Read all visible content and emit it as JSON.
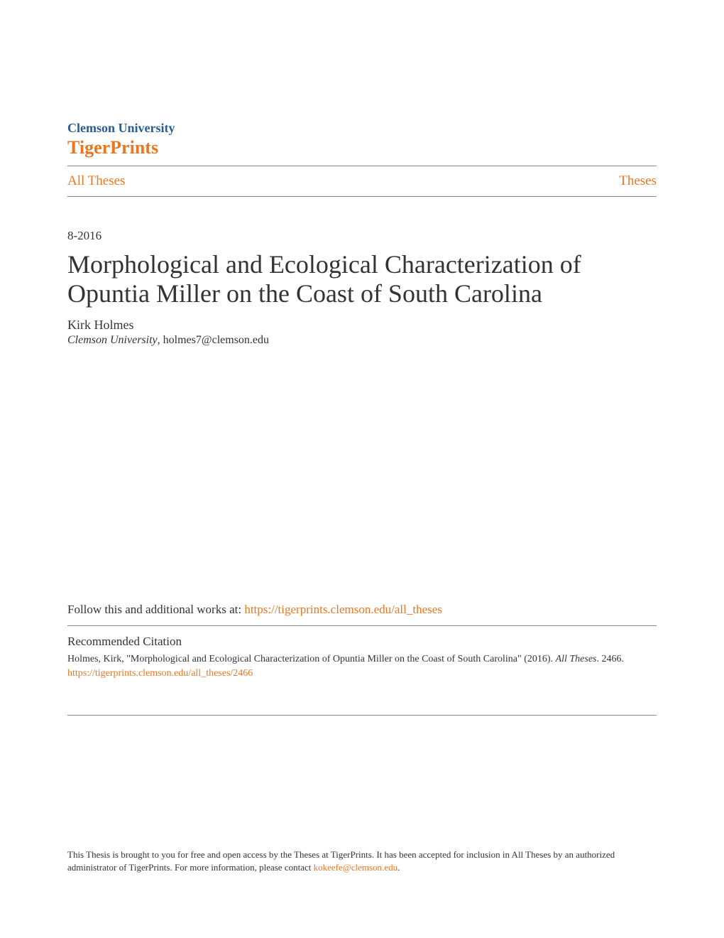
{
  "header": {
    "institution": "Clemson University",
    "repository": "TigerPrints"
  },
  "breadcrumb": {
    "left": "All Theses",
    "right": "Theses"
  },
  "date": "8-2016",
  "title": "Morphological and Ecological Characterization of Opuntia Miller on the Coast of South Carolina",
  "author": {
    "name": "Kirk Holmes",
    "institution": "Clemson University",
    "email": "holmes7@clemson.edu"
  },
  "follow": {
    "text": "Follow this and additional works at: ",
    "link": "https://tigerprints.clemson.edu/all_theses"
  },
  "citation": {
    "heading": "Recommended Citation",
    "text_prefix": "Holmes, Kirk, \"Morphological and Ecological Characterization of Opuntia Miller on the Coast of South Carolina\" (2016). ",
    "series": "All Theses",
    "text_suffix": ". 2466.",
    "link": "https://tigerprints.clemson.edu/all_theses/2466"
  },
  "footer": {
    "text_prefix": "This Thesis is brought to you for free and open access by the Theses at TigerPrints. It has been accepted for inclusion in All Theses by an authorized administrator of TigerPrints. For more information, please contact ",
    "contact": "kokeefe@clemson.edu",
    "text_suffix": "."
  },
  "colors": {
    "institution_blue": "#2a5c8f",
    "orange": "#e87722",
    "text": "#333333",
    "divider": "#888888",
    "background": "#ffffff"
  }
}
